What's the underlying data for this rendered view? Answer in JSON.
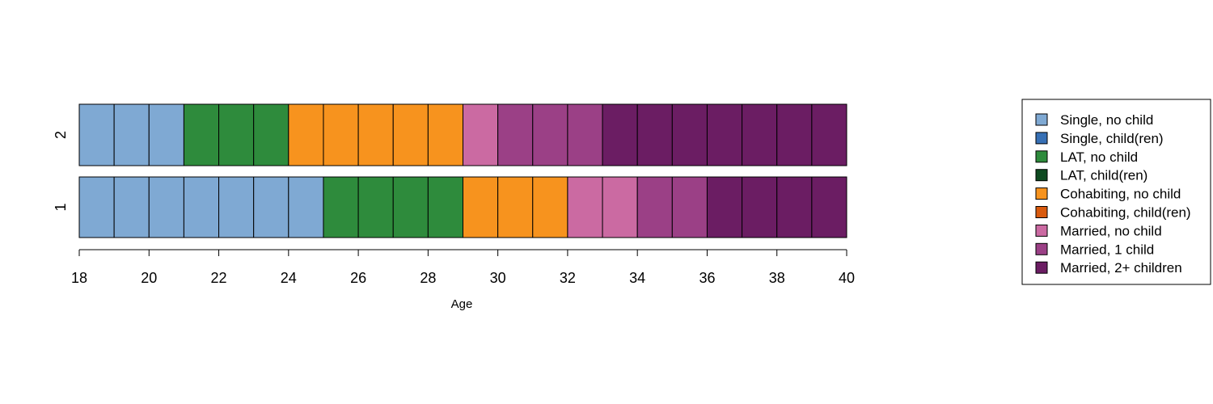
{
  "chart_data": {
    "type": "sequence-index",
    "xlabel": "Age",
    "ylabel": "",
    "xlim": [
      18,
      40
    ],
    "x_ticks": [
      18,
      20,
      22,
      24,
      26,
      28,
      30,
      32,
      34,
      36,
      38,
      40
    ],
    "legend_position": "right",
    "states": [
      {
        "name": "Single, no child",
        "color": "#7FA9D3"
      },
      {
        "name": "Single, child(ren)",
        "color": "#3770B5"
      },
      {
        "name": "LAT, no child",
        "color": "#2E8B3C"
      },
      {
        "name": "LAT, child(ren)",
        "color": "#0E4A20"
      },
      {
        "name": "Cohabiting, no child",
        "color": "#F7931E"
      },
      {
        "name": "Cohabiting, child(ren)",
        "color": "#D95A0E"
      },
      {
        "name": "Married, no child",
        "color": "#CB6AA2"
      },
      {
        "name": "Married, 1 child",
        "color": "#9B4086"
      },
      {
        "name": "Married, 2+ children",
        "color": "#6B1D63"
      }
    ],
    "sequences": [
      {
        "id": "1",
        "states": [
          "Single, no child",
          "Single, no child",
          "Single, no child",
          "Single, no child",
          "Single, no child",
          "Single, no child",
          "Single, no child",
          "LAT, no child",
          "LAT, no child",
          "LAT, no child",
          "LAT, no child",
          "Cohabiting, no child",
          "Cohabiting, no child",
          "Cohabiting, no child",
          "Married, no child",
          "Married, no child",
          "Married, 1 child",
          "Married, 1 child",
          "Married, 2+ children",
          "Married, 2+ children",
          "Married, 2+ children",
          "Married, 2+ children"
        ]
      },
      {
        "id": "2",
        "states": [
          "Single, no child",
          "Single, no child",
          "Single, no child",
          "LAT, no child",
          "LAT, no child",
          "LAT, no child",
          "Cohabiting, no child",
          "Cohabiting, no child",
          "Cohabiting, no child",
          "Cohabiting, no child",
          "Cohabiting, no child",
          "Married, no child",
          "Married, 1 child",
          "Married, 1 child",
          "Married, 1 child",
          "Married, 2+ children",
          "Married, 2+ children",
          "Married, 2+ children",
          "Married, 2+ children",
          "Married, 2+ children",
          "Married, 2+ children",
          "Married, 2+ children"
        ]
      }
    ]
  }
}
